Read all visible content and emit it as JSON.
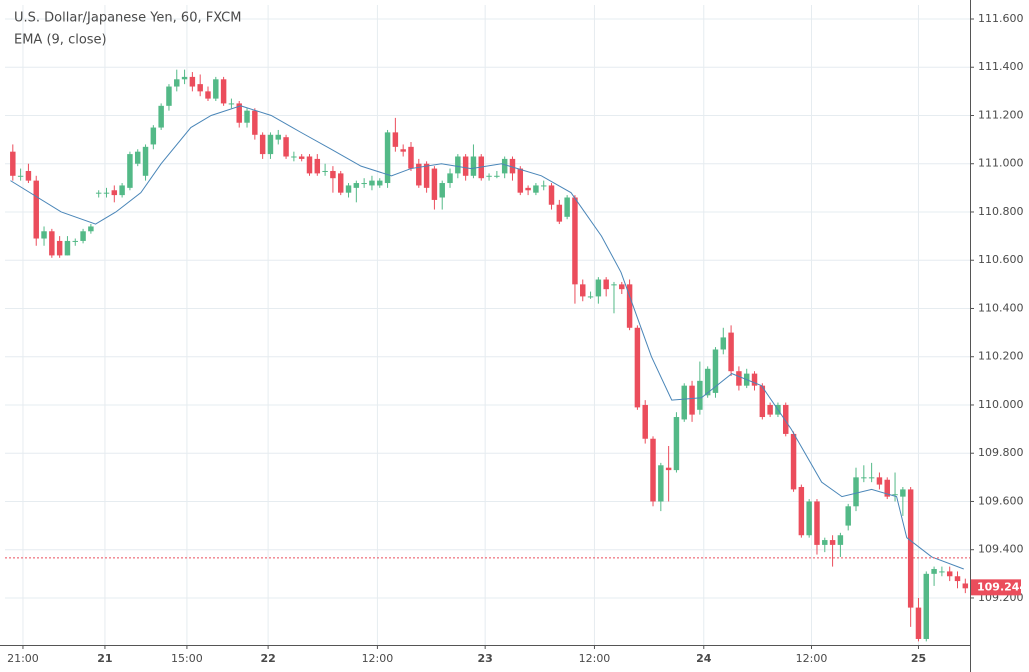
{
  "chart_data": {
    "type": "candlestick",
    "title": "U.S. Dollar/Japanese Yen, 60, FXCM",
    "subtitle": "EMA (9, close)",
    "up_color": "#53b987",
    "down_color": "#eb4d5c",
    "ema_color": "#4a86b8",
    "grid": true,
    "ylim": [
      109.005,
      111.658
    ],
    "yticks": [
      {
        "value": 109.2,
        "label": "109.200"
      },
      {
        "value": 109.4,
        "label": "109.400"
      },
      {
        "value": 109.6,
        "label": "109.600"
      },
      {
        "value": 109.8,
        "label": "109.800"
      },
      {
        "value": 110.0,
        "label": "110.000"
      },
      {
        "value": 110.2,
        "label": "110.200"
      },
      {
        "value": 110.4,
        "label": "110.400"
      },
      {
        "value": 110.6,
        "label": "110.600"
      },
      {
        "value": 110.8,
        "label": "110.800"
      },
      {
        "value": 111.0,
        "label": "111.000"
      },
      {
        "value": 111.2,
        "label": "111.200"
      },
      {
        "value": 111.4,
        "label": "111.400"
      },
      {
        "value": 111.6,
        "label": "111.600"
      }
    ],
    "xlim": [
      -1,
      122.6
    ],
    "xticks": [
      {
        "value": 1.3,
        "label": "21:00"
      },
      {
        "value": 11.8,
        "label": "21"
      },
      {
        "value": 22.3,
        "label": "15:00"
      },
      {
        "value": 32.7,
        "label": "22"
      },
      {
        "value": 46.7,
        "label": "12:00"
      },
      {
        "value": 60.5,
        "label": "23"
      },
      {
        "value": 74.5,
        "label": "12:00"
      },
      {
        "value": 88.5,
        "label": "24"
      },
      {
        "value": 102.3,
        "label": "12:00"
      },
      {
        "value": 116,
        "label": "25"
      }
    ],
    "ohlc": [
      [
        111.05,
        111.08,
        110.93,
        110.95
      ],
      [
        110.95,
        110.98,
        110.93,
        110.95
      ],
      [
        110.97,
        111.0,
        110.92,
        110.93
      ],
      [
        110.93,
        110.95,
        110.66,
        110.69
      ],
      [
        110.69,
        110.74,
        110.66,
        110.72
      ],
      [
        110.72,
        110.73,
        110.61,
        110.62
      ],
      [
        110.68,
        110.7,
        110.61,
        110.62
      ],
      [
        110.62,
        110.7,
        110.62,
        110.68
      ],
      [
        110.68,
        110.69,
        110.66,
        110.68
      ],
      [
        110.68,
        110.73,
        110.67,
        110.72
      ],
      [
        110.72,
        110.75,
        110.71,
        110.74
      ],
      [
        110.88,
        110.89,
        110.86,
        110.88
      ],
      [
        110.88,
        110.9,
        110.86,
        110.88
      ],
      [
        110.89,
        110.91,
        110.84,
        110.87
      ],
      [
        110.87,
        110.92,
        110.86,
        110.91
      ],
      [
        110.9,
        111.05,
        110.89,
        111.04
      ],
      [
        111.0,
        111.06,
        110.99,
        111.05
      ],
      [
        110.95,
        111.08,
        110.93,
        111.07
      ],
      [
        111.08,
        111.16,
        111.06,
        111.15
      ],
      [
        111.15,
        111.25,
        111.14,
        111.24
      ],
      [
        111.24,
        111.33,
        111.22,
        111.32
      ],
      [
        111.32,
        111.39,
        111.3,
        111.35
      ],
      [
        111.35,
        111.39,
        111.33,
        111.36
      ],
      [
        111.36,
        111.38,
        111.3,
        111.32
      ],
      [
        111.33,
        111.37,
        111.28,
        111.3
      ],
      [
        111.3,
        111.32,
        111.26,
        111.27
      ],
      [
        111.27,
        111.36,
        111.26,
        111.35
      ],
      [
        111.35,
        111.36,
        111.24,
        111.25
      ],
      [
        111.25,
        111.27,
        111.23,
        111.25
      ],
      [
        111.25,
        111.26,
        111.15,
        111.17
      ],
      [
        111.17,
        111.23,
        111.15,
        111.22
      ],
      [
        111.22,
        111.23,
        111.1,
        111.12
      ],
      [
        111.12,
        111.13,
        111.02,
        111.04
      ],
      [
        111.04,
        111.13,
        111.02,
        111.12
      ],
      [
        111.1,
        111.14,
        111.08,
        111.12
      ],
      [
        111.11,
        111.12,
        111.02,
        111.03
      ],
      [
        111.03,
        111.05,
        111.01,
        111.03
      ],
      [
        111.03,
        111.04,
        111.01,
        111.02
      ],
      [
        111.03,
        111.04,
        110.95,
        110.96
      ],
      [
        111.02,
        111.04,
        110.95,
        110.96
      ],
      [
        110.97,
        111.0,
        110.95,
        110.97
      ],
      [
        110.97,
        110.99,
        110.88,
        110.94
      ],
      [
        110.96,
        110.97,
        110.87,
        110.88
      ],
      [
        110.88,
        110.92,
        110.86,
        110.91
      ],
      [
        110.9,
        110.93,
        110.84,
        110.92
      ],
      [
        110.92,
        110.94,
        110.9,
        110.92
      ],
      [
        110.91,
        110.95,
        110.89,
        110.93
      ],
      [
        110.91,
        110.94,
        110.9,
        110.93
      ],
      [
        110.92,
        111.14,
        110.9,
        111.13
      ],
      [
        111.13,
        111.19,
        111.05,
        111.07
      ],
      [
        111.06,
        111.08,
        111.03,
        111.05
      ],
      [
        111.07,
        111.09,
        110.97,
        110.98
      ],
      [
        111.0,
        111.02,
        110.9,
        110.91
      ],
      [
        111.0,
        111.01,
        110.88,
        110.9
      ],
      [
        110.98,
        110.99,
        110.81,
        110.85
      ],
      [
        110.86,
        110.93,
        110.81,
        110.92
      ],
      [
        110.92,
        110.98,
        110.9,
        110.96
      ],
      [
        110.96,
        111.04,
        110.94,
        111.03
      ],
      [
        111.03,
        111.04,
        110.93,
        110.95
      ],
      [
        110.95,
        111.08,
        110.94,
        111.03
      ],
      [
        111.03,
        111.04,
        110.93,
        110.94
      ],
      [
        110.95,
        110.96,
        110.93,
        110.95
      ],
      [
        110.95,
        110.97,
        110.94,
        110.95
      ],
      [
        110.96,
        111.03,
        110.94,
        111.02
      ],
      [
        111.02,
        111.03,
        110.93,
        110.96
      ],
      [
        110.98,
        110.99,
        110.87,
        110.88
      ],
      [
        110.9,
        110.91,
        110.87,
        110.89
      ],
      [
        110.88,
        110.92,
        110.87,
        110.91
      ],
      [
        110.91,
        110.93,
        110.89,
        110.91
      ],
      [
        110.91,
        110.92,
        110.81,
        110.83
      ],
      [
        110.83,
        110.85,
        110.75,
        110.76
      ],
      [
        110.78,
        110.87,
        110.77,
        110.86
      ],
      [
        110.86,
        110.87,
        110.42,
        110.5
      ],
      [
        110.5,
        110.52,
        110.43,
        110.45
      ],
      [
        110.45,
        110.47,
        110.44,
        110.45
      ],
      [
        110.45,
        110.53,
        110.42,
        110.52
      ],
      [
        110.52,
        110.53,
        110.45,
        110.48
      ],
      [
        110.5,
        110.51,
        110.38,
        110.5
      ],
      [
        110.5,
        110.51,
        110.46,
        110.48
      ],
      [
        110.5,
        110.52,
        110.31,
        110.32
      ],
      [
        110.32,
        110.33,
        109.98,
        109.99
      ],
      [
        110.0,
        110.02,
        109.84,
        109.86
      ],
      [
        109.86,
        109.87,
        109.58,
        109.6
      ],
      [
        109.6,
        109.76,
        109.56,
        109.75
      ],
      [
        109.74,
        109.83,
        109.6,
        109.73
      ],
      [
        109.73,
        109.97,
        109.72,
        109.95
      ],
      [
        109.94,
        110.09,
        109.93,
        110.08
      ],
      [
        110.08,
        110.1,
        109.93,
        109.96
      ],
      [
        109.98,
        110.18,
        109.96,
        110.1
      ],
      [
        110.04,
        110.16,
        110.03,
        110.15
      ],
      [
        110.05,
        110.24,
        110.03,
        110.23
      ],
      [
        110.23,
        110.32,
        110.21,
        110.28
      ],
      [
        110.3,
        110.33,
        110.12,
        110.14
      ],
      [
        110.14,
        110.16,
        110.06,
        110.08
      ],
      [
        110.08,
        110.15,
        110.07,
        110.13
      ],
      [
        110.13,
        110.14,
        110.06,
        110.08
      ],
      [
        110.08,
        110.09,
        109.94,
        109.95
      ],
      [
        110.0,
        110.01,
        109.95,
        109.96
      ],
      [
        109.96,
        110.01,
        109.95,
        110.0
      ],
      [
        110.0,
        110.01,
        109.87,
        109.88
      ],
      [
        109.88,
        109.89,
        109.64,
        109.65
      ],
      [
        109.66,
        109.67,
        109.45,
        109.46
      ],
      [
        109.46,
        109.61,
        109.45,
        109.6
      ],
      [
        109.6,
        109.61,
        109.38,
        109.42
      ],
      [
        109.42,
        109.45,
        109.39,
        109.44
      ],
      [
        109.44,
        109.46,
        109.33,
        109.42
      ],
      [
        109.42,
        109.47,
        109.37,
        109.46
      ],
      [
        109.5,
        109.59,
        109.48,
        109.58
      ],
      [
        109.58,
        109.74,
        109.56,
        109.7
      ],
      [
        109.7,
        109.75,
        109.68,
        109.7
      ],
      [
        109.7,
        109.76,
        109.68,
        109.7
      ],
      [
        109.7,
        109.72,
        109.65,
        109.67
      ],
      [
        109.69,
        109.7,
        109.61,
        109.62
      ],
      [
        109.63,
        109.72,
        109.6,
        109.63
      ],
      [
        109.62,
        109.66,
        109.54,
        109.65
      ],
      [
        109.65,
        109.66,
        109.08,
        109.16
      ],
      [
        109.16,
        109.2,
        109.02,
        109.03
      ],
      [
        109.03,
        109.31,
        109.02,
        109.3
      ],
      [
        109.3,
        109.33,
        109.25,
        109.32
      ],
      [
        109.31,
        109.33,
        109.29,
        109.31
      ],
      [
        109.31,
        109.33,
        109.27,
        109.29
      ],
      [
        109.29,
        109.31,
        109.24,
        109.27
      ],
      [
        109.26,
        109.28,
        109.22,
        109.24
      ]
    ],
    "ema": {
      "x": [
        -0.3,
        6.2,
        10.6,
        13.2,
        16.4,
        19,
        22.8,
        25.4,
        29.2,
        33.1,
        36.9,
        40.8,
        44.6,
        48.5,
        51,
        54.9,
        58.7,
        62.6,
        67.7,
        71.5,
        75.4,
        77.9,
        81.8,
        84.4,
        88.2,
        92.1,
        95.9,
        99.7,
        103.6,
        106.2,
        110,
        113.2,
        114.5,
        117.7,
        121.8
      ],
      "values": [
        110.93,
        110.8,
        110.75,
        110.8,
        110.88,
        111.0,
        111.15,
        111.2,
        111.24,
        111.2,
        111.13,
        111.06,
        110.99,
        110.95,
        110.98,
        111.0,
        110.98,
        111.0,
        110.95,
        110.88,
        110.7,
        110.55,
        110.2,
        110.02,
        110.03,
        110.13,
        110.08,
        109.9,
        109.68,
        109.62,
        109.65,
        109.62,
        109.45,
        109.37,
        109.32
      ]
    },
    "price_line": 109.366,
    "last_price": {
      "value": 109.244,
      "label": "109.244"
    }
  }
}
